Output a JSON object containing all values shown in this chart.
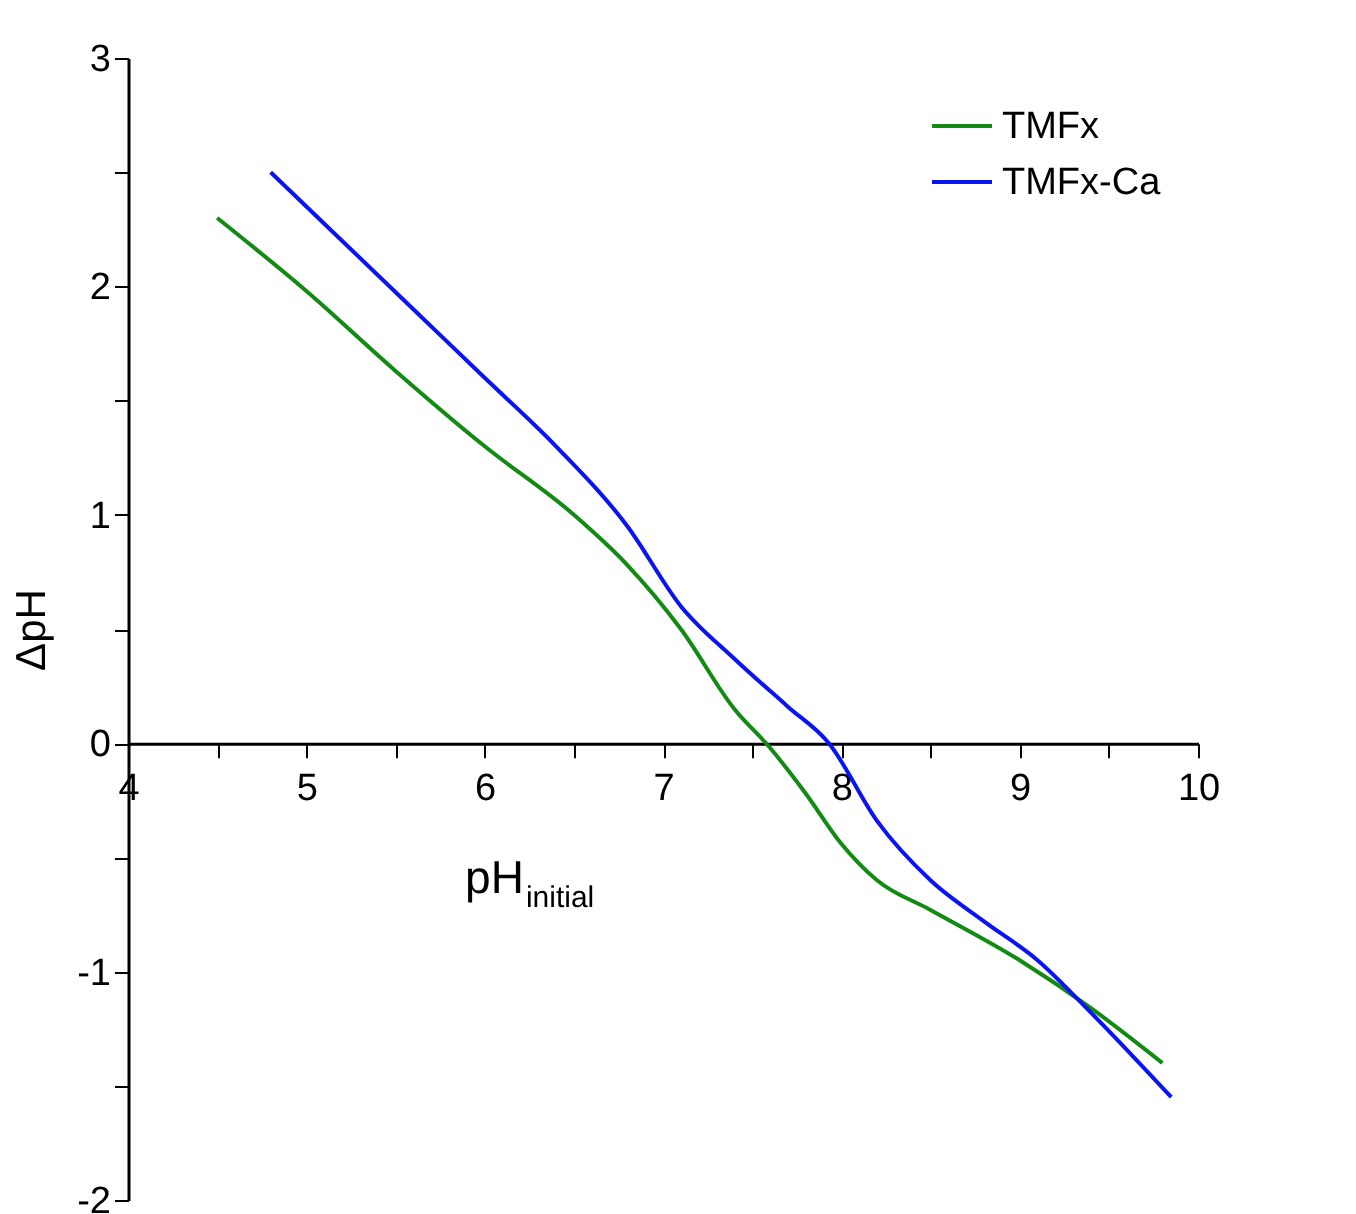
{
  "chart_data": {
    "type": "line",
    "xlabel": "pH$_{initial}$",
    "ylabel": "ΔpH",
    "xlim": [
      4,
      10
    ],
    "ylim": [
      -2,
      3
    ],
    "xticks": [
      4,
      {
        "value": 4.5,
        "label": null
      },
      5,
      {
        "value": 5.5,
        "label": null
      },
      6,
      {
        "value": 6.5,
        "label": null
      },
      7,
      {
        "value": 7.5,
        "label": null
      },
      8,
      {
        "value": 8.5,
        "label": null
      },
      9,
      {
        "value": 9.5,
        "label": null
      },
      10
    ],
    "yticks": [
      -2,
      {
        "value": -1.5,
        "label": null
      },
      -1,
      {
        "value": -0.5,
        "label": null
      },
      0,
      {
        "value": 0.5,
        "label": null
      },
      1,
      {
        "value": 1.5,
        "label": null
      },
      2,
      {
        "value": 2.5,
        "label": null
      },
      3
    ],
    "legend": "top right",
    "grid": false,
    "marker": "none",
    "line_style": "solid",
    "series": [
      {
        "name": "TMFx",
        "color": "#138a13",
        "x": [
          4.5,
          5,
          5.5,
          6,
          6.5,
          6.8,
          7.1,
          7.4,
          7.6,
          7.8,
          8,
          8.2,
          8.5,
          9,
          9.4,
          9.8
        ],
        "values": [
          2.3,
          1.98,
          1.63,
          1.3,
          1.0,
          0.78,
          0.5,
          0.15,
          -0.02,
          -0.22,
          -0.44,
          -0.6,
          -0.73,
          -0.95,
          -1.16,
          -1.4
        ]
      },
      {
        "name": "TMFx-Ca",
        "color": "#0a14f0",
        "x": [
          4.8,
          5.2,
          5.6,
          6,
          6.4,
          6.8,
          7.1,
          7.4,
          7.7,
          7.93,
          8.2,
          8.5,
          8.8,
          9.1,
          9.4,
          9.85
        ],
        "values": [
          2.5,
          2.2,
          1.9,
          1.6,
          1.3,
          0.95,
          0.6,
          0.37,
          0.16,
          0,
          -0.34,
          -0.6,
          -0.78,
          -0.95,
          -1.18,
          -1.55
        ]
      }
    ]
  }
}
